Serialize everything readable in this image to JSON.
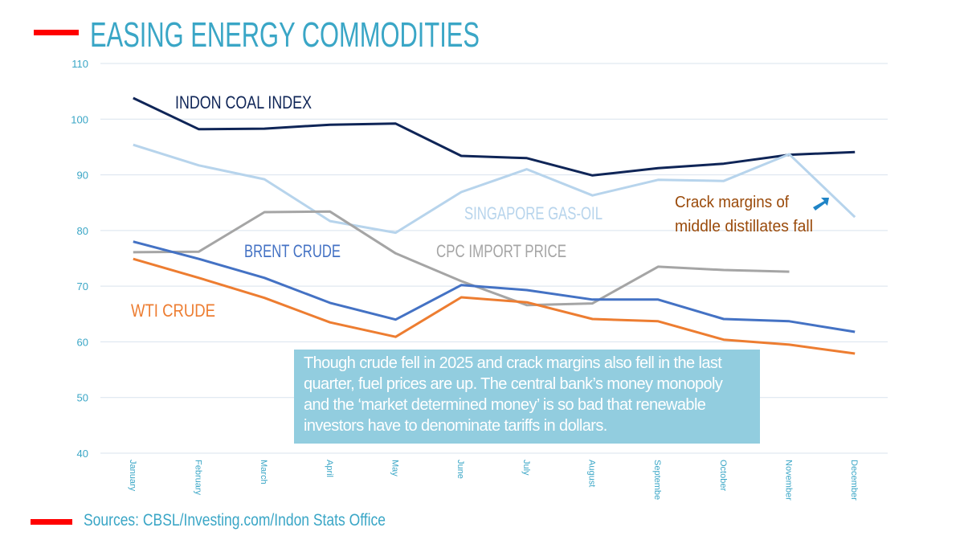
{
  "title": "EASING ENERGY COMMODITIES",
  "source": "Sources: CBSL/Investing.com/Indon Stats Office",
  "note_lines": [
    "Though crude fell in 2025 and crack margins also fell in the last",
    "quarter, fuel prices are up. The central bank’s money monopoly",
    "and the ‘market determined money’  is so bad that renewable",
    "investors have to denominate tariffs in dollars."
  ],
  "crack_note": [
    "Crack margins of",
    "middle distillates fall"
  ],
  "colors": {
    "title": "#3aa6c6",
    "accent_bar": "#ff0000",
    "note_bg": "#92cddf",
    "crack_note": "#9a4a0a",
    "arrow": "#1f84c6"
  },
  "chart_data": {
    "type": "line",
    "title": "EASING ENERGY COMMODITIES",
    "xlabel": "",
    "ylabel": "",
    "categories": [
      "January",
      "February",
      "March",
      "April",
      "May",
      "June",
      "July",
      "August",
      "Septembe",
      "October",
      "November",
      "December"
    ],
    "ylim": [
      40,
      110
    ],
    "yticks": [
      40,
      50,
      60,
      70,
      80,
      90,
      100,
      110
    ],
    "grid": true,
    "series": [
      {
        "name": "INDON COAL INDEX",
        "color": "#0f2557",
        "values": [
          103.8,
          98.2,
          98.3,
          99.0,
          99.2,
          93.4,
          93.0,
          89.9,
          91.2,
          92.0,
          93.6,
          94.1
        ]
      },
      {
        "name": "SINGAPORE GAS-OIL",
        "color": "#b7d4ec",
        "values": [
          95.4,
          91.7,
          89.2,
          81.7,
          79.6,
          86.9,
          91.0,
          86.3,
          89.1,
          88.9,
          93.7,
          82.4
        ]
      },
      {
        "name": "CPC IMPORT PRICE",
        "color": "#a5a5a5",
        "values": [
          76.1,
          76.2,
          83.3,
          83.4,
          75.9,
          70.9,
          66.6,
          66.9,
          73.5,
          72.9,
          72.6,
          null
        ]
      },
      {
        "name": "BRENT CRUDE",
        "color": "#4472c4",
        "values": [
          78.0,
          74.9,
          71.5,
          67.0,
          64.0,
          70.2,
          69.3,
          67.6,
          67.6,
          64.1,
          63.7,
          61.8
        ]
      },
      {
        "name": "WTI CRUDE",
        "color": "#ed7d31",
        "values": [
          74.9,
          71.5,
          67.9,
          63.5,
          60.9,
          68.0,
          67.1,
          64.1,
          63.7,
          60.4,
          59.5,
          57.9
        ]
      }
    ]
  }
}
